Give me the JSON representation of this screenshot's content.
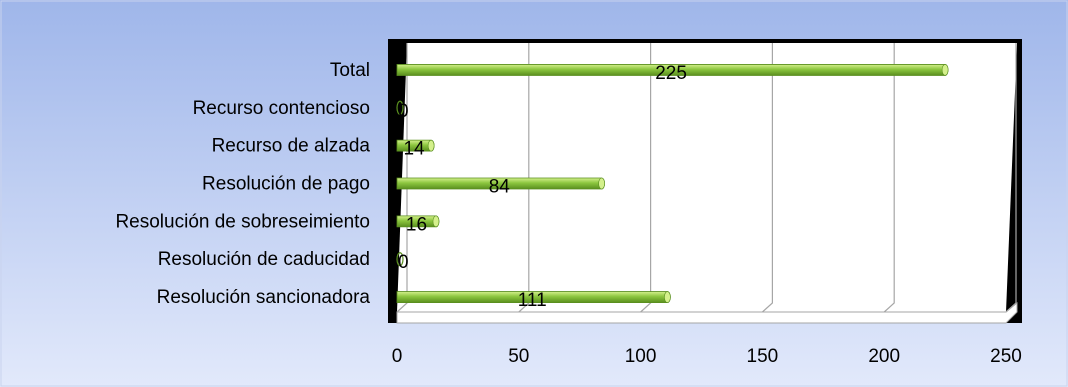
{
  "chart_data": {
    "type": "bar",
    "orientation": "horizontal",
    "categories": [
      "Total",
      "Recurso contencioso",
      "Recurso de alzada",
      "Resolución de pago",
      "Resolución de sobreseimiento",
      "Resolución de caducidad",
      "Resolución sancionadora"
    ],
    "values": [
      225,
      0,
      14,
      84,
      16,
      0,
      111
    ],
    "data_labels": [
      "225",
      "0",
      "14",
      "84",
      "16",
      "0",
      "111"
    ],
    "xlim": [
      0,
      250
    ],
    "x_ticks": [
      0,
      50,
      100,
      150,
      200,
      250
    ],
    "x_tick_labels": [
      "0",
      "50",
      "100",
      "150",
      "200",
      "250"
    ],
    "grid": true,
    "legend": "none",
    "colors": {
      "bar": "#8cc63f",
      "bar_dark": "#5a8f1f",
      "bar_light": "#d4f08c",
      "background_top": "#9fb6ea",
      "background_bottom": "#e2e9fb",
      "plot_frame": "#000000",
      "plot_face": "#ffffff",
      "gridline": "#a6a6a6",
      "text": "#000000"
    }
  }
}
